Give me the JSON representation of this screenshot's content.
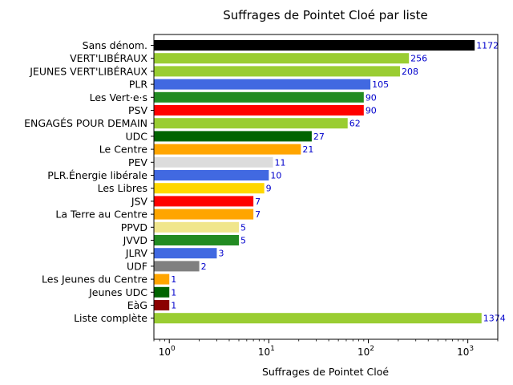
{
  "chart_data": {
    "type": "bar",
    "orientation": "horizontal",
    "title": "Suffrages de Pointet Cloé par liste",
    "xlabel": "Suffrages de Pointet Cloé",
    "ylabel": "",
    "xscale": "log",
    "xlim": [
      0.7,
      2000
    ],
    "xticks": [
      {
        "base": "10",
        "exp": "0"
      },
      {
        "base": "10",
        "exp": "1"
      },
      {
        "base": "10",
        "exp": "2"
      },
      {
        "base": "10",
        "exp": "3"
      }
    ],
    "grid": false,
    "categories": [
      "Sans dénom.",
      "VERT'LIBÉRAUX",
      "JEUNES VERT'LIBÉRAUX",
      "PLR",
      "Les Vert·e·s",
      "PSV",
      "ENGAGÉS POUR DEMAIN",
      "UDC",
      "Le Centre",
      "PEV",
      "PLR.Énergie libérale",
      "Les Libres",
      "JSV",
      "La Terre au Centre",
      "PPVD",
      "JVVD",
      "JLRV",
      "UDF",
      "Les Jeunes du Centre",
      "Jeunes UDC",
      "EàG",
      "Liste complète"
    ],
    "values": [
      1172,
      256,
      208,
      105,
      90,
      90,
      62,
      27,
      21,
      11,
      10,
      9,
      7,
      7,
      5,
      5,
      3,
      2,
      1,
      1,
      1,
      1374
    ],
    "value_labels": [
      "1172",
      "256",
      "208",
      "105",
      "90",
      "90",
      "62",
      "27",
      "21",
      "11",
      "10",
      "9",
      "7",
      "7",
      "5",
      "5",
      "3",
      "2",
      "1",
      "1",
      "1",
      "1374"
    ],
    "colors": [
      "#000000",
      "#9acd32",
      "#9acd32",
      "#4169e1",
      "#228b22",
      "#ff0000",
      "#9acd32",
      "#006400",
      "#ffa500",
      "#dcdcdc",
      "#4169e1",
      "#ffd700",
      "#ff0000",
      "#ffa500",
      "#f0e68c",
      "#228b22",
      "#4169e1",
      "#808080",
      "#ffa500",
      "#006400",
      "#8b0000",
      "#9acd32"
    ],
    "value_label_color": "#0000cc"
  }
}
